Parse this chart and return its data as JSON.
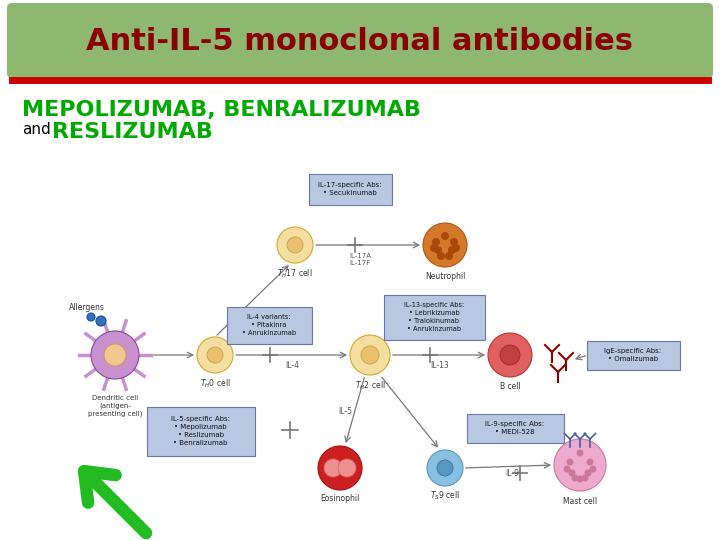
{
  "title": "Anti-IL-5 monoclonal antibodies",
  "title_color": "#8B0000",
  "title_bg_color": "#8EB870",
  "title_fontsize": 22,
  "subtitle_line1": "MEPOLIZUMAB, BENRALIZUMAB",
  "subtitle_line2": "RESLIZUMAB",
  "subtitle_and": "and",
  "subtitle_color": "#00AA00",
  "subtitle_fontsize": 16,
  "subtitle_and_fontsize": 11,
  "red_line_color": "#CC0000",
  "bg_color": "#FFFFFF",
  "slide_border_color": "#BBBBBB",
  "arrow_color": "#22BB22",
  "fig_bg": "#FFFFFF",
  "box_bg": "#B8C8E0",
  "box_edge": "#6878A8"
}
